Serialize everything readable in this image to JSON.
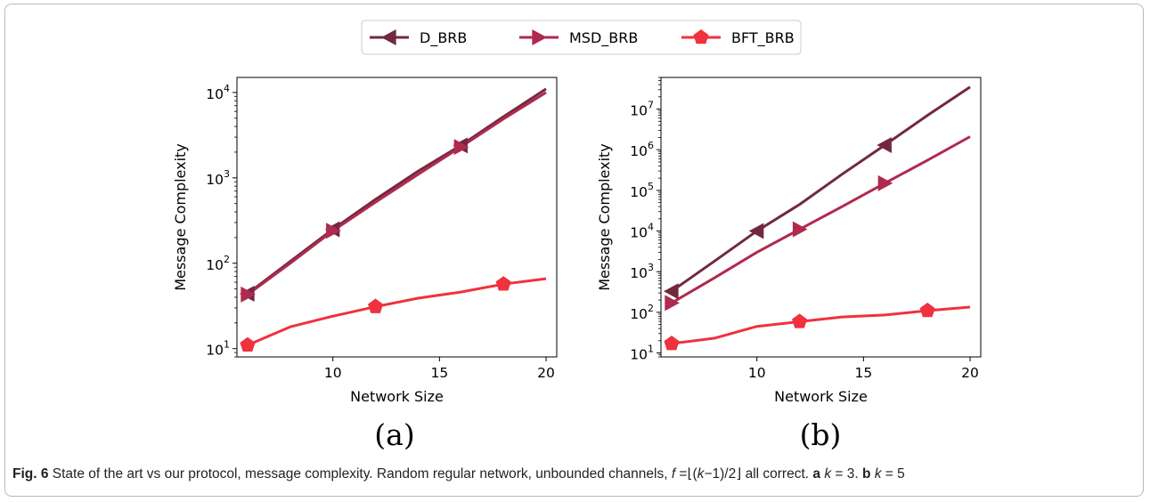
{
  "legend": [
    {
      "name": "D_BRB",
      "color": "#722940",
      "marker": "left-triangle-icon"
    },
    {
      "name": "MSD_BRB",
      "color": "#b02a4e",
      "marker": "right-triangle-icon"
    },
    {
      "name": "BFT_BRB",
      "color": "#f0313e",
      "marker": "pentagon-icon"
    }
  ],
  "chart_data": [
    {
      "type": "line",
      "panel_label": "(a)",
      "xlabel": "Network Size",
      "ylabel": "Message Complexity",
      "yscale": "log",
      "xlim": [
        5.5,
        20.5
      ],
      "ylim": [
        8,
        15000
      ],
      "x_ticks": [
        10,
        15,
        20
      ],
      "y_ticks": [
        10,
        100,
        1000,
        10000
      ],
      "y_tick_labels": [
        {
          "base": "10",
          "exp": "1"
        },
        {
          "base": "10",
          "exp": "2"
        },
        {
          "base": "10",
          "exp": "3"
        },
        {
          "base": "10",
          "exp": "4"
        }
      ],
      "grid": false,
      "series": [
        {
          "name": "D_BRB",
          "color": "#722940",
          "marker": "left-triangle",
          "x": [
            6,
            8,
            10,
            12,
            14,
            16,
            18,
            20
          ],
          "y": [
            44,
            105,
            250,
            560,
            1200,
            2400,
            5200,
            11000
          ],
          "marker_x": [
            6,
            10,
            16
          ]
        },
        {
          "name": "MSD_BRB",
          "color": "#b02a4e",
          "marker": "right-triangle",
          "x": [
            6,
            8,
            10,
            12,
            14,
            16,
            18,
            20
          ],
          "y": [
            43,
            100,
            240,
            520,
            1100,
            2300,
            4900,
            10000
          ],
          "marker_x": [
            6,
            10,
            16
          ]
        },
        {
          "name": "BFT_BRB",
          "color": "#f0313e",
          "marker": "pentagon",
          "x": [
            6,
            8,
            10,
            12,
            14,
            16,
            18,
            20
          ],
          "y": [
            11,
            18,
            24,
            31,
            39,
            46,
            57,
            66
          ],
          "marker_x": [
            6,
            12,
            18
          ]
        }
      ]
    },
    {
      "type": "line",
      "panel_label": "(b)",
      "xlabel": "Network Size",
      "ylabel": "Message Complexity",
      "yscale": "log",
      "xlim": [
        5.5,
        20.5
      ],
      "ylim": [
        8,
        60000000
      ],
      "x_ticks": [
        10,
        15,
        20
      ],
      "y_ticks": [
        10,
        100,
        1000,
        10000,
        100000,
        1000000,
        10000000
      ],
      "y_tick_labels": [
        {
          "base": "10",
          "exp": "1"
        },
        {
          "base": "10",
          "exp": "2"
        },
        {
          "base": "10",
          "exp": "3"
        },
        {
          "base": "10",
          "exp": "4"
        },
        {
          "base": "10",
          "exp": "5"
        },
        {
          "base": "10",
          "exp": "6"
        },
        {
          "base": "10",
          "exp": "7"
        }
      ],
      "grid": false,
      "series": [
        {
          "name": "D_BRB",
          "color": "#722940",
          "marker": "left-triangle",
          "x": [
            6,
            8,
            10,
            12,
            14,
            16,
            18,
            20
          ],
          "y": [
            330,
            1800,
            10000,
            45000,
            250000,
            1300000,
            7000000,
            35000000
          ],
          "marker_x": [
            6,
            10,
            16
          ]
        },
        {
          "name": "MSD_BRB",
          "color": "#b02a4e",
          "marker": "right-triangle",
          "x": [
            6,
            8,
            10,
            12,
            14,
            16,
            18,
            20
          ],
          "y": [
            170,
            700,
            3000,
            11000,
            40000,
            150000,
            550000,
            2100000
          ],
          "marker_x": [
            6,
            12,
            16
          ]
        },
        {
          "name": "BFT_BRB",
          "color": "#f0313e",
          "marker": "pentagon",
          "x": [
            6,
            8,
            10,
            12,
            14,
            16,
            18,
            20
          ],
          "y": [
            17,
            23,
            45,
            59,
            77,
            86,
            110,
            135
          ],
          "marker_x": [
            6,
            12,
            18
          ]
        }
      ]
    }
  ],
  "caption": {
    "fig_label": "Fig. 6",
    "text": " State of the art vs our protocol, message complexity. Random regular network, unbounded channels, ",
    "formula_f": "f",
    "formula_rest": " =⌊(",
    "formula_k": "k",
    "formula_tail": "−1)/2⌋ all correct. ",
    "part_a": "a",
    "part_a_expr_k": "k",
    "part_a_expr": " = 3. ",
    "part_b": "b",
    "part_b_expr_k": "k",
    "part_b_expr": " = 5"
  }
}
